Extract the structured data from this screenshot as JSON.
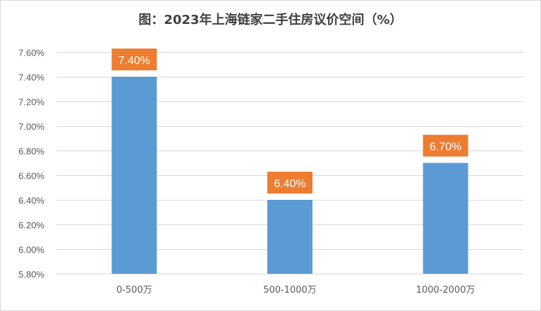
{
  "chart_data": {
    "type": "bar",
    "title": "图：2023年上海链家二手住房议价空间（%）",
    "categories": [
      "0-500万",
      "500-1000万",
      "1000-2000万"
    ],
    "values": [
      7.4,
      6.4,
      6.7
    ],
    "value_labels": [
      "7.40%",
      "6.40%",
      "6.70%"
    ],
    "ylim": [
      5.8,
      7.6
    ],
    "yticks": [
      7.6,
      7.4,
      7.2,
      7.0,
      6.8,
      6.6,
      6.4,
      6.2,
      6.0,
      5.8
    ],
    "ytick_labels": [
      "7.60%",
      "7.40%",
      "7.20%",
      "7.00%",
      "6.80%",
      "6.60%",
      "6.40%",
      "6.20%",
      "6.00%",
      "5.80%"
    ],
    "xlabel": "",
    "ylabel": "",
    "grid": true,
    "legend": "none",
    "colors": {
      "bar": "#5b9bd5",
      "label_box": "#ed7d31",
      "grid": "#d9d9d9",
      "text": "#595959"
    }
  }
}
